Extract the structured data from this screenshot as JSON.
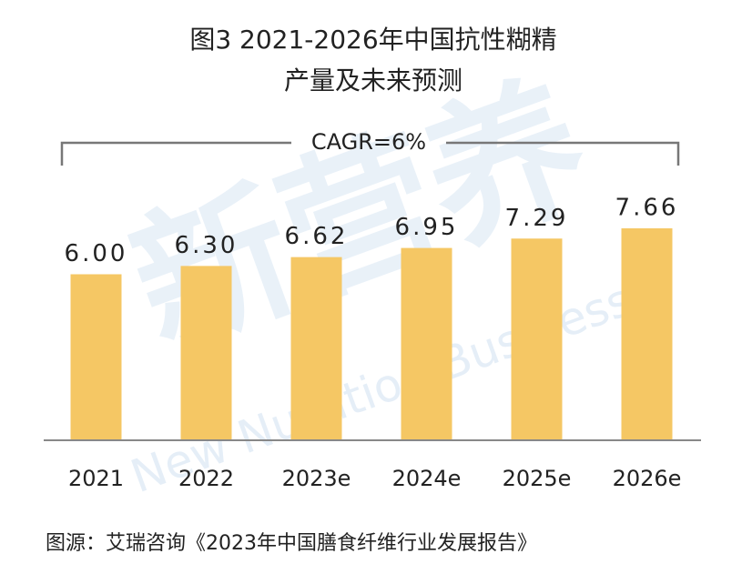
{
  "chart_data": {
    "type": "bar",
    "title": "图3 2021-2026年中国抗性糊精",
    "subtitle": "产量及未来预测",
    "annotation": "CAGR=6%",
    "categories": [
      "2021",
      "2022",
      "2023e",
      "2024e",
      "2025e",
      "2026e"
    ],
    "values": [
      6.0,
      6.3,
      6.62,
      6.95,
      7.29,
      7.66
    ],
    "value_labels": [
      "6.00",
      "6.30",
      "6.62",
      "6.95",
      "7.29",
      "7.66"
    ],
    "color": "#f5c764",
    "source": "图源：艾瑞咨询《2023年中国膳食纤维行业发展报告》",
    "watermark": "新营养",
    "watermark_en": "New Nutrition Business"
  }
}
